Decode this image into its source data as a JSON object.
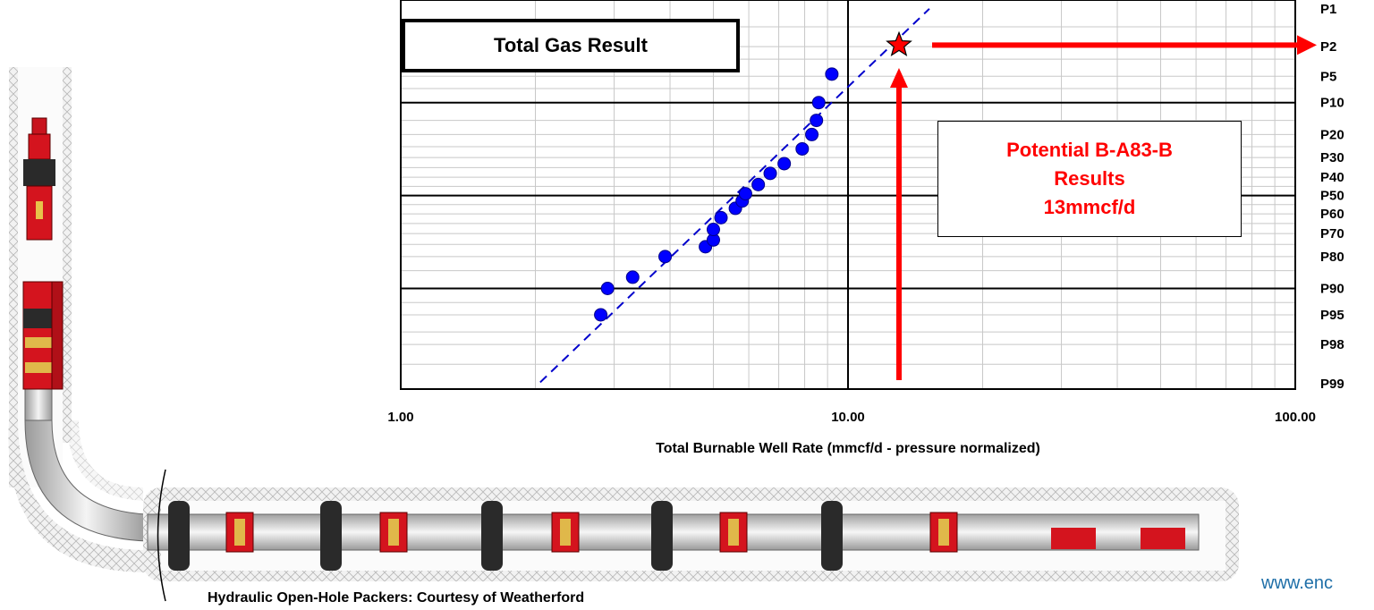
{
  "caption": "Hydraulic Open-Hole Packers: Courtesy of Weatherford",
  "website": "www.enc",
  "colors": {
    "data_point": "#0000ff",
    "trend_line": "#0000cc",
    "highlight": "#ff0000",
    "packer_red": "#d4141e"
  },
  "icons": {
    "potential_marker": "star-icon",
    "arrows": "arrow-icon"
  },
  "annotation": {
    "lines": [
      "Potential B-A83-B",
      "Results",
      "13mmcf/d"
    ],
    "value_x": 13
  },
  "chart_data": {
    "type": "scatter",
    "title": "Total Gas Result",
    "xlabel": "Total Burnable Well Rate (mmcf/d - pressure normalized)",
    "ylabel": "",
    "x_scale": "log",
    "xlim": [
      1,
      100
    ],
    "x_tick_labels": [
      "1.00",
      "10.00",
      "100.00"
    ],
    "x_tick_values": [
      1,
      10,
      100
    ],
    "y_scale": "probability",
    "y_tick_labels": [
      "P1",
      "P2",
      "P5",
      "P10",
      "P20",
      "P30",
      "P40",
      "P50",
      "P60",
      "P70",
      "P80",
      "P90",
      "P95",
      "P98",
      "P99"
    ],
    "y_tick_values": [
      1,
      2,
      5,
      10,
      20,
      30,
      40,
      50,
      60,
      70,
      80,
      90,
      95,
      98,
      99
    ],
    "grid": true,
    "series": [
      {
        "points": [
          {
            "x": 2.8,
            "p": 95
          },
          {
            "x": 2.9,
            "p": 90
          },
          {
            "x": 3.3,
            "p": 87
          },
          {
            "x": 3.9,
            "p": 80
          },
          {
            "x": 4.8,
            "p": 76
          },
          {
            "x": 5.0,
            "p": 73
          },
          {
            "x": 5.0,
            "p": 68
          },
          {
            "x": 5.2,
            "p": 62
          },
          {
            "x": 5.6,
            "p": 57
          },
          {
            "x": 5.8,
            "p": 53
          },
          {
            "x": 5.9,
            "p": 49
          },
          {
            "x": 6.3,
            "p": 44
          },
          {
            "x": 6.7,
            "p": 38
          },
          {
            "x": 7.2,
            "p": 33
          },
          {
            "x": 7.9,
            "p": 26
          },
          {
            "x": 8.3,
            "p": 20
          },
          {
            "x": 8.5,
            "p": 15
          },
          {
            "x": 8.6,
            "p": 10
          },
          {
            "x": 9.2,
            "p": 4.7
          }
        ]
      }
    ],
    "trendline": {
      "x": [
        2.05,
        15.2
      ],
      "p": [
        99.5,
        0.5
      ]
    },
    "highlight_point": {
      "x": 13,
      "p": 1.9
    }
  }
}
